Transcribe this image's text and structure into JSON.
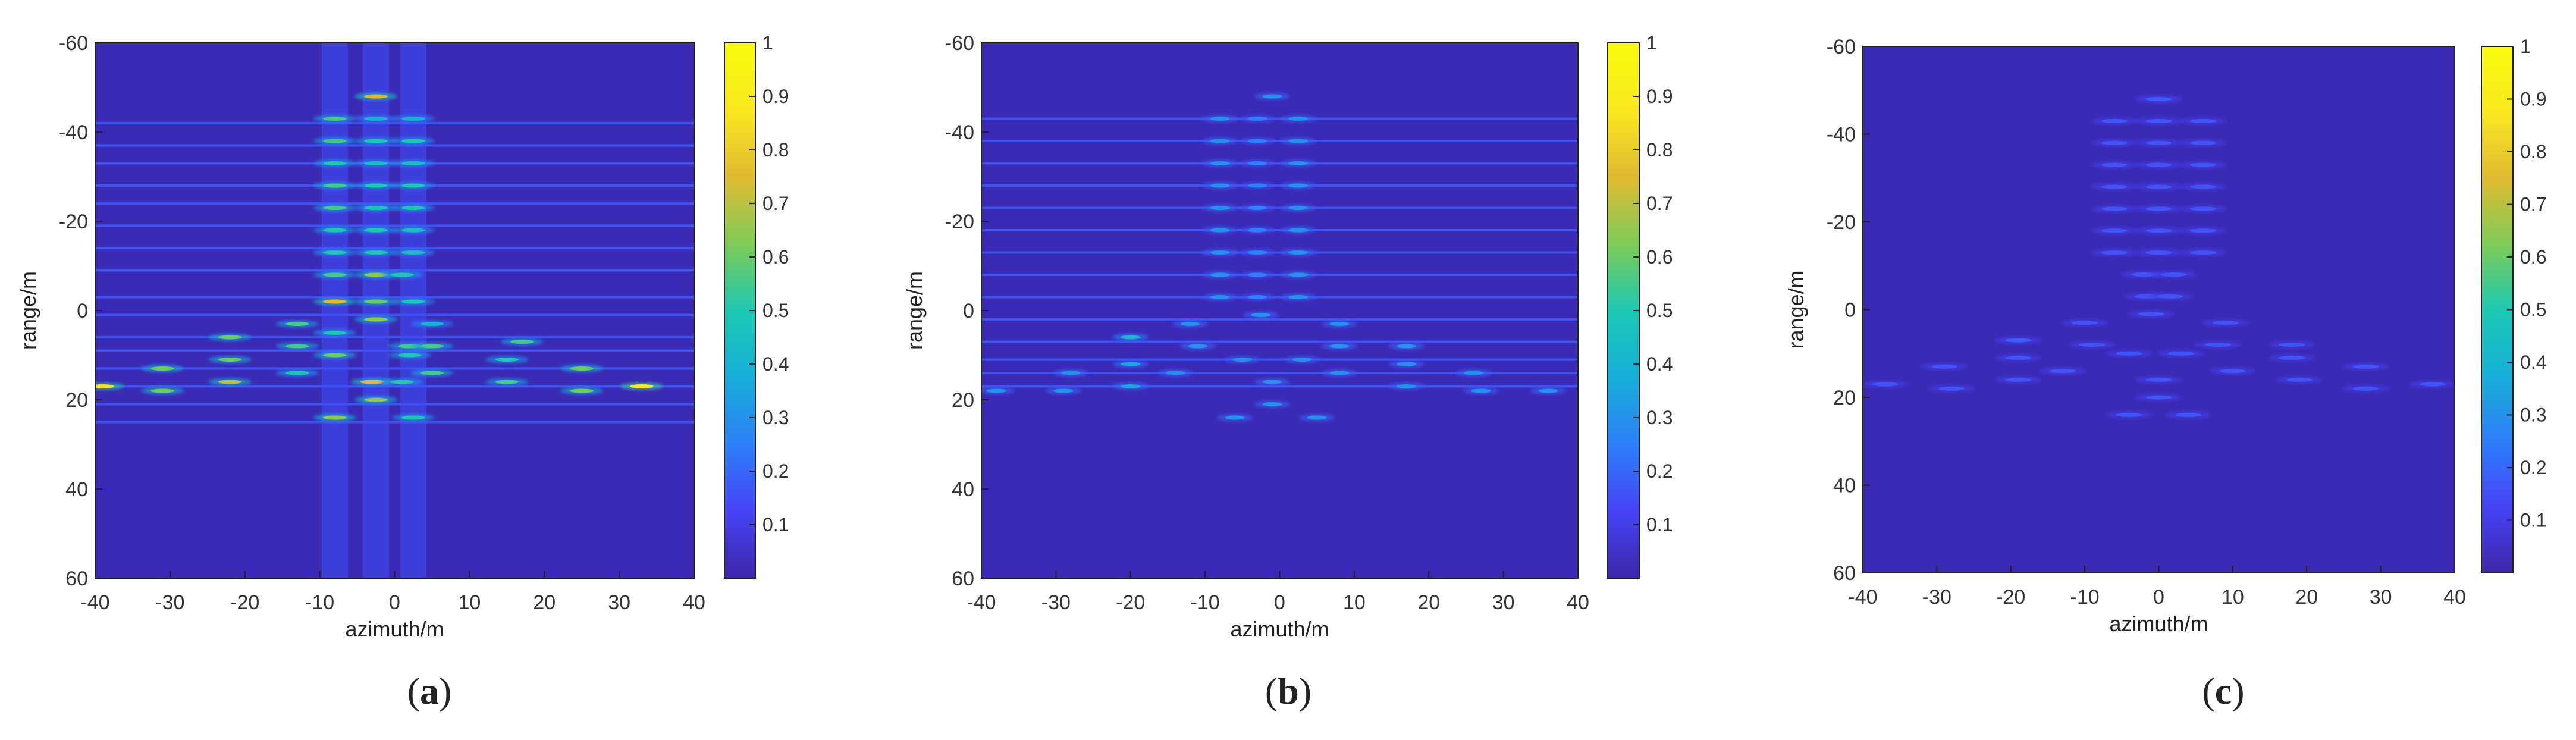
{
  "colormap": [
    "#3e26a8",
    "#4743f8",
    "#2d80f9",
    "#17aed8",
    "#1cc8b1",
    "#7fcb56",
    "#dfba30",
    "#fbe81f",
    "#f9fb0e"
  ],
  "background_color": "#3a2ab5",
  "chart_data": [
    {
      "type": "heatmap",
      "caption_paren_open": "(",
      "caption_letter": "a",
      "caption_paren_close": ")",
      "xlabel": "azimuth/m",
      "ylabel": "range/m",
      "xlim": [
        -40,
        40
      ],
      "ylim": [
        -60,
        60
      ],
      "y_reversed": true,
      "xticks": [
        "-40",
        "-30",
        "-20",
        "-10",
        "0",
        "10",
        "20",
        "30",
        "40"
      ],
      "yticks": [
        "-60",
        "-40",
        "-20",
        "0",
        "20",
        "40",
        "60"
      ],
      "colorbar_ticks": [
        "0.1",
        "0.2",
        "0.3",
        "0.4",
        "0.5",
        "0.6",
        "0.7",
        "0.8",
        "0.9",
        "1"
      ],
      "colorbar_range": [
        0,
        1
      ],
      "range_lines": [
        -42,
        -37,
        -33,
        -28,
        -24,
        -19,
        -14,
        -9,
        -3,
        1,
        6,
        9,
        13,
        17,
        21,
        25
      ],
      "azimuth_streaks": [
        -8,
        -2.5,
        2.5
      ],
      "points": [
        {
          "x": -2.5,
          "y": -48,
          "v": 0.75
        },
        {
          "x": -8,
          "y": -43,
          "v": 0.55
        },
        {
          "x": -2.5,
          "y": -43,
          "v": 0.4
        },
        {
          "x": 2.5,
          "y": -43,
          "v": 0.4
        },
        {
          "x": -8,
          "y": -38,
          "v": 0.55
        },
        {
          "x": -2.5,
          "y": -38,
          "v": 0.5
        },
        {
          "x": 2.5,
          "y": -38,
          "v": 0.5
        },
        {
          "x": -8,
          "y": -33,
          "v": 0.5
        },
        {
          "x": -2.5,
          "y": -33,
          "v": 0.45
        },
        {
          "x": 2.5,
          "y": -33,
          "v": 0.45
        },
        {
          "x": -8,
          "y": -28,
          "v": 0.55
        },
        {
          "x": -2.5,
          "y": -28,
          "v": 0.5
        },
        {
          "x": 2.5,
          "y": -28,
          "v": 0.5
        },
        {
          "x": -8,
          "y": -23,
          "v": 0.55
        },
        {
          "x": -2.5,
          "y": -23,
          "v": 0.5
        },
        {
          "x": 2.5,
          "y": -23,
          "v": 0.5
        },
        {
          "x": -8,
          "y": -18,
          "v": 0.5
        },
        {
          "x": -2.5,
          "y": -18,
          "v": 0.5
        },
        {
          "x": 2.5,
          "y": -18,
          "v": 0.45
        },
        {
          "x": -8,
          "y": -13,
          "v": 0.5
        },
        {
          "x": -2.5,
          "y": -13,
          "v": 0.5
        },
        {
          "x": 2.5,
          "y": -13,
          "v": 0.45
        },
        {
          "x": -8,
          "y": -8,
          "v": 0.55
        },
        {
          "x": -2.5,
          "y": -8,
          "v": 0.65
        },
        {
          "x": 1,
          "y": -8,
          "v": 0.5
        },
        {
          "x": -8,
          "y": -2,
          "v": 0.75
        },
        {
          "x": -2.5,
          "y": -2,
          "v": 0.6
        },
        {
          "x": 2.5,
          "y": -2,
          "v": 0.5
        },
        {
          "x": -2.5,
          "y": 2,
          "v": 0.65
        },
        {
          "x": -13,
          "y": 3,
          "v": 0.55
        },
        {
          "x": 5,
          "y": 3,
          "v": 0.4
        },
        {
          "x": -22,
          "y": 6,
          "v": 0.6
        },
        {
          "x": -8,
          "y": 5,
          "v": 0.5
        },
        {
          "x": -13,
          "y": 8,
          "v": 0.55
        },
        {
          "x": 2,
          "y": 8,
          "v": 0.55
        },
        {
          "x": 5,
          "y": 8,
          "v": 0.55
        },
        {
          "x": 17,
          "y": 7,
          "v": 0.55
        },
        {
          "x": -22,
          "y": 11,
          "v": 0.6
        },
        {
          "x": -8,
          "y": 10,
          "v": 0.6
        },
        {
          "x": 2,
          "y": 10,
          "v": 0.5
        },
        {
          "x": 15,
          "y": 11,
          "v": 0.5
        },
        {
          "x": -31,
          "y": 13,
          "v": 0.6
        },
        {
          "x": 25,
          "y": 13,
          "v": 0.6
        },
        {
          "x": -13,
          "y": 14,
          "v": 0.5
        },
        {
          "x": 5,
          "y": 14,
          "v": 0.55
        },
        {
          "x": -22,
          "y": 16,
          "v": 0.7
        },
        {
          "x": -3,
          "y": 16,
          "v": 0.75
        },
        {
          "x": 1,
          "y": 16,
          "v": 0.5
        },
        {
          "x": 15,
          "y": 16,
          "v": 0.55
        },
        {
          "x": -39,
          "y": 17,
          "v": 0.85
        },
        {
          "x": 33,
          "y": 17,
          "v": 0.9
        },
        {
          "x": -31,
          "y": 18,
          "v": 0.6
        },
        {
          "x": 25,
          "y": 18,
          "v": 0.6
        },
        {
          "x": -2.5,
          "y": 20,
          "v": 0.65
        },
        {
          "x": -8,
          "y": 24,
          "v": 0.65
        },
        {
          "x": 2.5,
          "y": 24,
          "v": 0.5
        }
      ]
    },
    {
      "type": "heatmap",
      "caption_paren_open": "(",
      "caption_letter": "b",
      "caption_paren_close": ")",
      "xlabel": "azimuth/m",
      "ylabel": "range/m",
      "xlim": [
        -40,
        40
      ],
      "ylim": [
        -60,
        60
      ],
      "y_reversed": true,
      "xticks": [
        "-40",
        "-30",
        "-20",
        "-10",
        "0",
        "10",
        "20",
        "30",
        "40"
      ],
      "yticks": [
        "-60",
        "-40",
        "-20",
        "0",
        "20",
        "40",
        "60"
      ],
      "colorbar_ticks": [
        "0.1",
        "0.2",
        "0.3",
        "0.4",
        "0.5",
        "0.6",
        "0.7",
        "0.8",
        "0.9",
        "1"
      ],
      "colorbar_range": [
        0,
        1
      ],
      "range_lines": [
        -43,
        -38,
        -33,
        -28,
        -23,
        -18,
        -13,
        -8,
        -3,
        2,
        7,
        11,
        14,
        17
      ],
      "azimuth_streaks": [],
      "points": [
        {
          "x": -1,
          "y": -48,
          "v": 0.3
        },
        {
          "x": -8,
          "y": -43,
          "v": 0.3
        },
        {
          "x": -3,
          "y": -43,
          "v": 0.25
        },
        {
          "x": 2.5,
          "y": -43,
          "v": 0.3
        },
        {
          "x": -8,
          "y": -38,
          "v": 0.3
        },
        {
          "x": -3,
          "y": -38,
          "v": 0.25
        },
        {
          "x": 2.5,
          "y": -38,
          "v": 0.3
        },
        {
          "x": -8,
          "y": -33,
          "v": 0.3
        },
        {
          "x": -3,
          "y": -33,
          "v": 0.25
        },
        {
          "x": 2.5,
          "y": -33,
          "v": 0.3
        },
        {
          "x": -8,
          "y": -28,
          "v": 0.3
        },
        {
          "x": -3,
          "y": -28,
          "v": 0.25
        },
        {
          "x": 2.5,
          "y": -28,
          "v": 0.3
        },
        {
          "x": -8,
          "y": -23,
          "v": 0.3
        },
        {
          "x": -3,
          "y": -23,
          "v": 0.25
        },
        {
          "x": 2.5,
          "y": -23,
          "v": 0.3
        },
        {
          "x": -8,
          "y": -18,
          "v": 0.3
        },
        {
          "x": -3,
          "y": -18,
          "v": 0.25
        },
        {
          "x": 2.5,
          "y": -18,
          "v": 0.3
        },
        {
          "x": -8,
          "y": -13,
          "v": 0.3
        },
        {
          "x": -3,
          "y": -13,
          "v": 0.25
        },
        {
          "x": 2.5,
          "y": -13,
          "v": 0.3
        },
        {
          "x": -8,
          "y": -8,
          "v": 0.3
        },
        {
          "x": -3,
          "y": -8,
          "v": 0.25
        },
        {
          "x": 2.5,
          "y": -8,
          "v": 0.3
        },
        {
          "x": -8,
          "y": -3,
          "v": 0.3
        },
        {
          "x": -3,
          "y": -3,
          "v": 0.25
        },
        {
          "x": 2.5,
          "y": -3,
          "v": 0.3
        },
        {
          "x": -2.5,
          "y": 1,
          "v": 0.3
        },
        {
          "x": -12,
          "y": 3,
          "v": 0.3
        },
        {
          "x": 8,
          "y": 3,
          "v": 0.3
        },
        {
          "x": -20,
          "y": 6,
          "v": 0.4
        },
        {
          "x": -11,
          "y": 8,
          "v": 0.3
        },
        {
          "x": 8,
          "y": 8,
          "v": 0.3
        },
        {
          "x": 17,
          "y": 8,
          "v": 0.3
        },
        {
          "x": -20,
          "y": 12,
          "v": 0.35
        },
        {
          "x": -5,
          "y": 11,
          "v": 0.3
        },
        {
          "x": 3,
          "y": 11,
          "v": 0.3
        },
        {
          "x": 17,
          "y": 12,
          "v": 0.3
        },
        {
          "x": -28,
          "y": 14,
          "v": 0.3
        },
        {
          "x": -14,
          "y": 14,
          "v": 0.3
        },
        {
          "x": 8,
          "y": 14,
          "v": 0.3
        },
        {
          "x": 26,
          "y": 14,
          "v": 0.3
        },
        {
          "x": -20,
          "y": 17,
          "v": 0.35
        },
        {
          "x": -1,
          "y": 16,
          "v": 0.3
        },
        {
          "x": 17,
          "y": 17,
          "v": 0.3
        },
        {
          "x": -38,
          "y": 18,
          "v": 0.3
        },
        {
          "x": -29,
          "y": 18,
          "v": 0.3
        },
        {
          "x": 27,
          "y": 18,
          "v": 0.3
        },
        {
          "x": 36,
          "y": 18,
          "v": 0.3
        },
        {
          "x": -1,
          "y": 21,
          "v": 0.3
        },
        {
          "x": -6,
          "y": 24,
          "v": 0.3
        },
        {
          "x": 5,
          "y": 24,
          "v": 0.3
        }
      ]
    },
    {
      "type": "heatmap",
      "caption_paren_open": "(",
      "caption_letter": "c",
      "caption_paren_close": ")",
      "xlabel": "azimuth/m",
      "ylabel": "range/m",
      "xlim": [
        -40,
        40
      ],
      "ylim": [
        -60,
        60
      ],
      "y_reversed": true,
      "xticks": [
        "-40",
        "-30",
        "-20",
        "-10",
        "0",
        "10",
        "20",
        "30",
        "40"
      ],
      "yticks": [
        "-60",
        "-40",
        "-20",
        "0",
        "20",
        "40",
        "60"
      ],
      "colorbar_ticks": [
        "0.1",
        "0.2",
        "0.3",
        "0.4",
        "0.5",
        "0.6",
        "0.7",
        "0.8",
        "0.9",
        "1"
      ],
      "colorbar_range": [
        0,
        1
      ],
      "range_lines": [],
      "azimuth_streaks": [],
      "points": [
        {
          "x": 0,
          "y": -48,
          "v": 0.18
        },
        {
          "x": -6,
          "y": -43,
          "v": 0.16
        },
        {
          "x": 0,
          "y": -43,
          "v": 0.16
        },
        {
          "x": 6,
          "y": -43,
          "v": 0.16
        },
        {
          "x": -6,
          "y": -38,
          "v": 0.16
        },
        {
          "x": 0,
          "y": -38,
          "v": 0.16
        },
        {
          "x": 6,
          "y": -38,
          "v": 0.16
        },
        {
          "x": -6,
          "y": -33,
          "v": 0.16
        },
        {
          "x": 0,
          "y": -33,
          "v": 0.16
        },
        {
          "x": 6,
          "y": -33,
          "v": 0.16
        },
        {
          "x": -6,
          "y": -28,
          "v": 0.16
        },
        {
          "x": 0,
          "y": -28,
          "v": 0.16
        },
        {
          "x": 6,
          "y": -28,
          "v": 0.16
        },
        {
          "x": -6,
          "y": -23,
          "v": 0.16
        },
        {
          "x": 0,
          "y": -23,
          "v": 0.16
        },
        {
          "x": 6,
          "y": -23,
          "v": 0.16
        },
        {
          "x": -6,
          "y": -18,
          "v": 0.16
        },
        {
          "x": 0,
          "y": -18,
          "v": 0.16
        },
        {
          "x": 6,
          "y": -18,
          "v": 0.16
        },
        {
          "x": -6,
          "y": -13,
          "v": 0.16
        },
        {
          "x": 0,
          "y": -13,
          "v": 0.16
        },
        {
          "x": 6,
          "y": -13,
          "v": 0.16
        },
        {
          "x": -2,
          "y": -8,
          "v": 0.16
        },
        {
          "x": 2,
          "y": -8,
          "v": 0.16
        },
        {
          "x": -1.5,
          "y": -3,
          "v": 0.16
        },
        {
          "x": 1.5,
          "y": -3,
          "v": 0.16
        },
        {
          "x": -1,
          "y": 1,
          "v": 0.16
        },
        {
          "x": -10,
          "y": 3,
          "v": 0.16
        },
        {
          "x": 9,
          "y": 3,
          "v": 0.16
        },
        {
          "x": -19,
          "y": 7,
          "v": 0.18
        },
        {
          "x": -9,
          "y": 8,
          "v": 0.16
        },
        {
          "x": 8,
          "y": 8,
          "v": 0.16
        },
        {
          "x": 18,
          "y": 8,
          "v": 0.16
        },
        {
          "x": -19,
          "y": 11,
          "v": 0.16
        },
        {
          "x": -4,
          "y": 10,
          "v": 0.16
        },
        {
          "x": 3,
          "y": 10,
          "v": 0.16
        },
        {
          "x": 18,
          "y": 11,
          "v": 0.16
        },
        {
          "x": -29,
          "y": 13,
          "v": 0.16
        },
        {
          "x": -13,
          "y": 14,
          "v": 0.16
        },
        {
          "x": 10,
          "y": 14,
          "v": 0.16
        },
        {
          "x": 28,
          "y": 13,
          "v": 0.16
        },
        {
          "x": -19,
          "y": 16,
          "v": 0.16
        },
        {
          "x": 0,
          "y": 16,
          "v": 0.16
        },
        {
          "x": 19,
          "y": 16,
          "v": 0.16
        },
        {
          "x": -37,
          "y": 17,
          "v": 0.16
        },
        {
          "x": -28,
          "y": 18,
          "v": 0.16
        },
        {
          "x": 28,
          "y": 18,
          "v": 0.16
        },
        {
          "x": 37,
          "y": 17,
          "v": 0.16
        },
        {
          "x": 0,
          "y": 20,
          "v": 0.16
        },
        {
          "x": -4,
          "y": 24,
          "v": 0.16
        },
        {
          "x": 4,
          "y": 24,
          "v": 0.16
        }
      ]
    }
  ]
}
